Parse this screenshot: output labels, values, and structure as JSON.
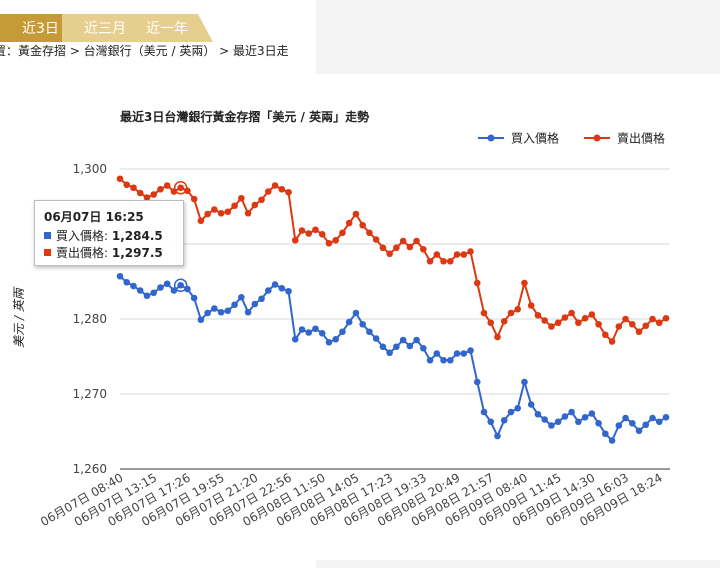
{
  "tabs": [
    {
      "label": "近3日",
      "active": true
    },
    {
      "label": "近三月",
      "active": false
    },
    {
      "label": "近一年",
      "active": false
    }
  ],
  "breadcrumb": "置：黃金存摺 > 台灣銀行（美元 / 英兩） > 最近3日走",
  "colors": {
    "buy": "#3366cc",
    "sell": "#dc3912",
    "tab_active": "#c69a36",
    "tab_inactive": "#e6cf8e"
  },
  "tooltip": {
    "title": "06月07日 16:25",
    "buy_label": "買入價格:",
    "buy_value": "1,284.5",
    "sell_label": "賣出價格:",
    "sell_value": "1,297.5"
  },
  "chart_data": {
    "type": "line",
    "title": "最近3日台灣銀行黃金存摺「美元 / 英兩」走勢",
    "ylabel": "美元 / 英兩",
    "xlabel": "",
    "ylim": [
      1260,
      1300
    ],
    "yticks": [
      1260,
      1270,
      1280,
      1290,
      1300
    ],
    "ytick_labels": [
      "1,260",
      "1,270",
      "1,280",
      "",
      "1,300"
    ],
    "grid": true,
    "legend_position": "top-right",
    "xtick_labels": [
      "06月07日 08:40",
      "06月07日 13:15",
      "06月07日 17:26",
      "06月07日 19:55",
      "06月07日 21:20",
      "06月07日 22:56",
      "06月08日 11:50",
      "06月08日 14:05",
      "06月08日 17:23",
      "06月08日 19:33",
      "06月08日 20:49",
      "06月08日 21:57",
      "06月09日 08:40",
      "06月09日 11:45",
      "06月09日 14:30",
      "06月09日 16:03",
      "06月09日 18:24"
    ],
    "xtick_indices": [
      0,
      5,
      10,
      15,
      20,
      25,
      30,
      35,
      40,
      45,
      50,
      55,
      60,
      65,
      70,
      75,
      80
    ],
    "highlight_index": 9,
    "series": [
      {
        "name": "買入價格",
        "values": [
          1285.7,
          1284.9,
          1284.4,
          1283.8,
          1283.1,
          1283.5,
          1284.2,
          1284.7,
          1283.8,
          1284.5,
          1284.0,
          1282.8,
          1279.9,
          1280.8,
          1281.4,
          1280.9,
          1281.1,
          1281.9,
          1282.9,
          1280.9,
          1282.0,
          1282.7,
          1283.8,
          1284.6,
          1284.1,
          1283.7,
          1277.3,
          1278.6,
          1278.2,
          1278.7,
          1278.1,
          1276.9,
          1277.3,
          1278.3,
          1279.6,
          1280.8,
          1279.3,
          1278.3,
          1277.4,
          1276.3,
          1275.5,
          1276.3,
          1277.2,
          1276.4,
          1277.2,
          1276.1,
          1274.5,
          1275.4,
          1274.5,
          1274.5,
          1275.4,
          1275.4,
          1275.8,
          1271.6,
          1267.6,
          1266.3,
          1264.4,
          1266.5,
          1267.6,
          1268.1,
          1271.6,
          1268.6,
          1267.3,
          1266.6,
          1265.8,
          1266.3,
          1267.0,
          1267.6,
          1266.3,
          1266.9,
          1267.4,
          1266.1,
          1264.7,
          1263.8,
          1265.8,
          1266.8,
          1266.1,
          1265.1,
          1265.9,
          1266.8,
          1266.3,
          1266.9
        ]
      },
      {
        "name": "賣出價格",
        "values": [
          1298.7,
          1297.9,
          1297.5,
          1296.8,
          1296.2,
          1296.6,
          1297.3,
          1297.8,
          1297.0,
          1297.5,
          1297.1,
          1296.0,
          1293.1,
          1294.0,
          1294.6,
          1294.1,
          1294.3,
          1295.1,
          1296.1,
          1294.1,
          1295.2,
          1295.9,
          1297.0,
          1297.8,
          1297.3,
          1296.9,
          1290.5,
          1291.8,
          1291.4,
          1291.9,
          1291.3,
          1290.1,
          1290.5,
          1291.5,
          1292.8,
          1294.0,
          1292.5,
          1291.5,
          1290.6,
          1289.5,
          1288.7,
          1289.5,
          1290.4,
          1289.6,
          1290.4,
          1289.3,
          1287.7,
          1288.6,
          1287.7,
          1287.7,
          1288.6,
          1288.6,
          1289.0,
          1284.8,
          1280.8,
          1279.5,
          1277.6,
          1279.7,
          1280.8,
          1281.3,
          1284.8,
          1281.8,
          1280.5,
          1279.8,
          1279.0,
          1279.5,
          1280.2,
          1280.8,
          1279.5,
          1280.1,
          1280.6,
          1279.3,
          1277.9,
          1277.0,
          1279.0,
          1280.0,
          1279.3,
          1278.3,
          1279.1,
          1280.0,
          1279.5,
          1280.1
        ]
      }
    ]
  }
}
